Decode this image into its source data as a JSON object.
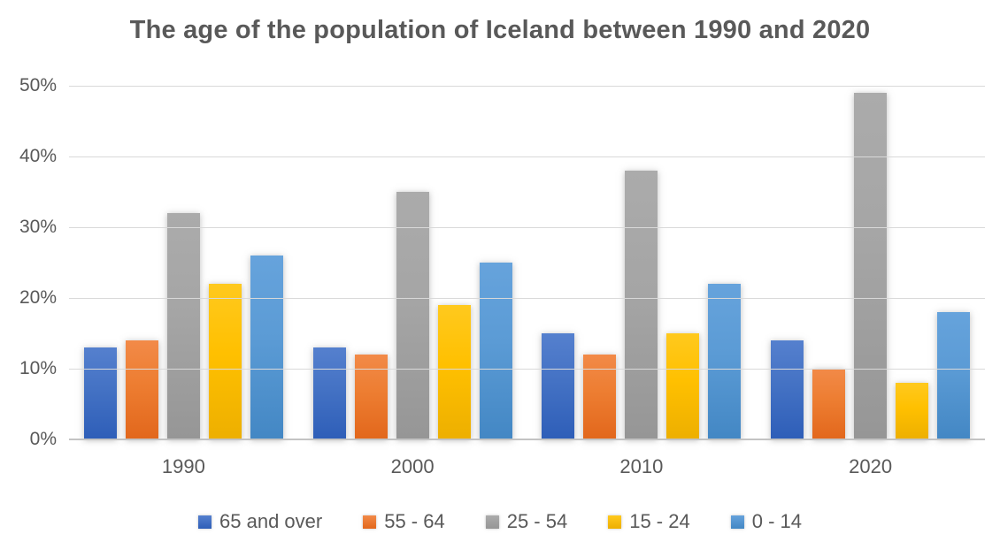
{
  "chart_data": {
    "type": "bar",
    "title": "The age of the population of Iceland between 1990 and 2020",
    "categories": [
      "1990",
      "2000",
      "2010",
      "2020"
    ],
    "series": [
      {
        "name": "65 and over",
        "color": "#4472C4",
        "color_top": "#5580CE",
        "color_bottom": "#2E5EB8",
        "values": [
          13,
          13,
          15,
          14
        ]
      },
      {
        "name": "55 - 64",
        "color": "#ED7D31",
        "color_top": "#F28A48",
        "color_bottom": "#E2671C",
        "values": [
          14,
          12,
          12,
          10
        ]
      },
      {
        "name": "25 - 54",
        "color": "#A5A5A5",
        "color_top": "#ABABAB",
        "color_bottom": "#969696",
        "values": [
          32,
          35,
          38,
          49
        ]
      },
      {
        "name": "15 - 24",
        "color": "#FFC000",
        "color_top": "#FFC91E",
        "color_bottom": "#EDAF00",
        "values": [
          22,
          19,
          15,
          8
        ]
      },
      {
        "name": "0 - 14",
        "color": "#5B9BD5",
        "color_top": "#66A3DC",
        "color_bottom": "#4387C4",
        "values": [
          26,
          25,
          22,
          18
        ]
      }
    ],
    "xlabel": "",
    "ylabel": "",
    "ylim": [
      0,
      50
    ],
    "ytick_step": 10,
    "ytick_labels": [
      "0%",
      "10%",
      "20%",
      "30%",
      "40%",
      "50%"
    ],
    "grid": true,
    "legend_position": "bottom"
  },
  "colors": {
    "text": "#595959",
    "gridline": "#D9D9D9",
    "axis_line": "#C3C3C3",
    "background": "#FFFFFF"
  }
}
